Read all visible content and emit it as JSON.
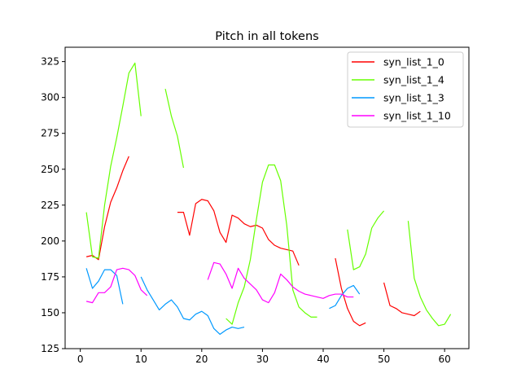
{
  "chart_data": {
    "type": "line",
    "title": "Pitch in all tokens",
    "xlabel": "",
    "ylabel": "",
    "xlim": [
      -2.5,
      64
    ],
    "ylim": [
      125,
      335
    ],
    "xticks": [
      0,
      10,
      20,
      30,
      40,
      50,
      60
    ],
    "yticks": [
      125,
      150,
      175,
      200,
      225,
      250,
      275,
      300,
      325
    ],
    "grid": false,
    "legend_position": "upper right",
    "series": [
      {
        "name": "syn_list_1_0",
        "color": "#ff0000",
        "segments": [
          [
            [
              1,
              189
            ],
            [
              2,
              190
            ],
            [
              3,
              187
            ],
            [
              4,
              210
            ],
            [
              5,
              227
            ],
            [
              6,
              237
            ],
            [
              7,
              249
            ],
            [
              8,
              259
            ]
          ],
          [
            [
              16,
              220
            ],
            [
              17,
              220
            ],
            [
              18,
              204
            ],
            [
              19,
              226
            ],
            [
              20,
              229
            ],
            [
              21,
              228
            ],
            [
              22,
              221
            ],
            [
              23,
              206
            ],
            [
              24,
              199
            ],
            [
              25,
              218
            ],
            [
              26,
              216
            ],
            [
              27,
              212
            ],
            [
              28,
              210
            ],
            [
              29,
              211
            ],
            [
              30,
              209
            ],
            [
              31,
              201
            ],
            [
              32,
              197
            ],
            [
              33,
              195
            ],
            [
              34,
              194
            ],
            [
              35,
              193
            ],
            [
              36,
              183
            ]
          ],
          [
            [
              42,
              188
            ],
            [
              43,
              167
            ],
            [
              44,
              153
            ],
            [
              45,
              144
            ],
            [
              46,
              141
            ],
            [
              47,
              143
            ]
          ],
          [
            [
              50,
              171
            ],
            [
              51,
              155
            ],
            [
              52,
              153
            ],
            [
              53,
              150
            ],
            [
              54,
              149
            ],
            [
              55,
              148
            ],
            [
              56,
              151
            ]
          ]
        ]
      },
      {
        "name": "syn_list_1_4",
        "color": "#66ff00",
        "segments": [
          [
            [
              1,
              220
            ],
            [
              2,
              189
            ],
            [
              3,
              188
            ],
            [
              4,
              225
            ],
            [
              5,
              252
            ],
            [
              6,
              272
            ],
            [
              7,
              294
            ],
            [
              8,
              317
            ],
            [
              9,
              324
            ],
            [
              10,
              287
            ]
          ],
          [
            [
              14,
              306
            ],
            [
              15,
              287
            ],
            [
              16,
              273
            ],
            [
              17,
              251
            ]
          ],
          [
            [
              24,
              146
            ],
            [
              25,
              142
            ],
            [
              26,
              157
            ],
            [
              27,
              168
            ],
            [
              28,
              187
            ],
            [
              29,
              215
            ],
            [
              30,
              241
            ],
            [
              31,
              253
            ],
            [
              32,
              253
            ],
            [
              33,
              242
            ],
            [
              34,
              211
            ],
            [
              35,
              166
            ],
            [
              36,
              154
            ],
            [
              37,
              150
            ],
            [
              38,
              147
            ],
            [
              39,
              147
            ]
          ],
          [
            [
              44,
              208
            ],
            [
              45,
              180
            ],
            [
              46,
              182
            ],
            [
              47,
              191
            ],
            [
              48,
              209
            ],
            [
              49,
              216
            ],
            [
              50,
              221
            ]
          ],
          [
            [
              54,
              214
            ],
            [
              55,
              174
            ],
            [
              56,
              161
            ],
            [
              57,
              152
            ],
            [
              58,
              146
            ],
            [
              59,
              141
            ],
            [
              60,
              142
            ],
            [
              61,
              149
            ]
          ]
        ]
      },
      {
        "name": "syn_list_1_3",
        "color": "#0099ff",
        "segments": [
          [
            [
              1,
              181
            ],
            [
              2,
              167
            ],
            [
              3,
              172
            ],
            [
              4,
              180
            ],
            [
              5,
              180
            ],
            [
              6,
              176
            ],
            [
              7,
              156
            ]
          ],
          [
            [
              10,
              175
            ],
            [
              11,
              166
            ],
            [
              12,
              159
            ],
            [
              13,
              152
            ],
            [
              14,
              156
            ],
            [
              15,
              159
            ],
            [
              16,
              154
            ],
            [
              17,
              146
            ],
            [
              18,
              145
            ],
            [
              19,
              149
            ],
            [
              20,
              151
            ],
            [
              21,
              148
            ],
            [
              22,
              139
            ],
            [
              23,
              135
            ],
            [
              24,
              138
            ],
            [
              25,
              140
            ],
            [
              26,
              139
            ],
            [
              27,
              140
            ]
          ],
          [
            [
              41,
              153
            ],
            [
              42,
              155
            ],
            [
              43,
              162
            ],
            [
              44,
              167
            ],
            [
              45,
              169
            ],
            [
              46,
              163
            ]
          ]
        ]
      },
      {
        "name": "syn_list_1_10",
        "color": "#ff00ff",
        "segments": [
          [
            [
              1,
              158
            ],
            [
              2,
              157
            ],
            [
              3,
              164
            ],
            [
              4,
              164
            ],
            [
              5,
              168
            ],
            [
              6,
              180
            ],
            [
              7,
              181
            ],
            [
              8,
              180
            ],
            [
              9,
              176
            ],
            [
              10,
              166
            ],
            [
              11,
              162
            ]
          ],
          [
            [
              21,
              173
            ],
            [
              22,
              185
            ],
            [
              23,
              184
            ],
            [
              24,
              177
            ],
            [
              25,
              167
            ],
            [
              26,
              181
            ],
            [
              27,
              174
            ],
            [
              28,
              170
            ],
            [
              29,
              166
            ],
            [
              30,
              159
            ],
            [
              31,
              157
            ],
            [
              32,
              164
            ],
            [
              33,
              177
            ],
            [
              34,
              173
            ],
            [
              35,
              168
            ],
            [
              36,
              165
            ],
            [
              37,
              163
            ],
            [
              38,
              162
            ],
            [
              39,
              161
            ],
            [
              40,
              160
            ],
            [
              41,
              162
            ],
            [
              42,
              163
            ],
            [
              43,
              163
            ],
            [
              44,
              161
            ],
            [
              45,
              161
            ]
          ]
        ]
      }
    ]
  }
}
